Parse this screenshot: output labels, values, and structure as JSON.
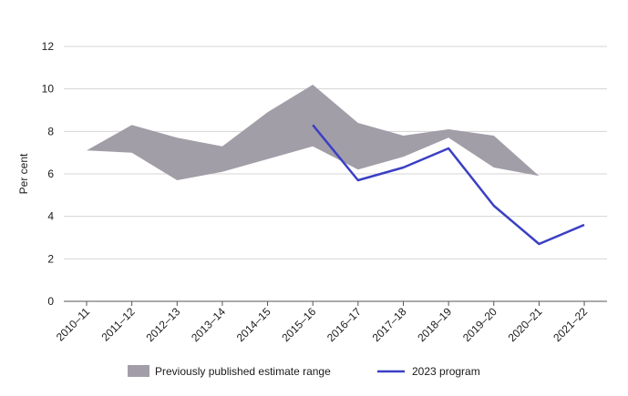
{
  "chart_data": {
    "type": "line",
    "ylabel": "Per cent",
    "xlabel": "",
    "ylim": [
      0,
      12
    ],
    "yticks": [
      0,
      2,
      4,
      6,
      8,
      10,
      12
    ],
    "grid": "horizontal",
    "legend_position": "bottom",
    "categories": [
      "2010–11",
      "2011–12",
      "2012–13",
      "2013–14",
      "2014–15",
      "2015–16",
      "2016–17",
      "2017–18",
      "2018–19",
      "2019–20",
      "2020–21",
      "2021–22"
    ],
    "series": [
      {
        "name": "Previously published estimate range",
        "kind": "range",
        "color": "#a29ea8",
        "lower": [
          7.1,
          7.0,
          5.7,
          6.1,
          6.7,
          7.3,
          6.2,
          6.8,
          7.7,
          6.3,
          5.9,
          null
        ],
        "upper": [
          7.1,
          8.3,
          7.7,
          7.3,
          8.9,
          10.2,
          8.4,
          7.8,
          8.1,
          7.8,
          5.9,
          null
        ]
      },
      {
        "name": "2023 program",
        "kind": "line",
        "color": "#3b3fc4",
        "values": [
          null,
          null,
          null,
          null,
          null,
          8.3,
          5.7,
          6.3,
          7.2,
          4.5,
          2.7,
          3.6
        ]
      }
    ]
  }
}
